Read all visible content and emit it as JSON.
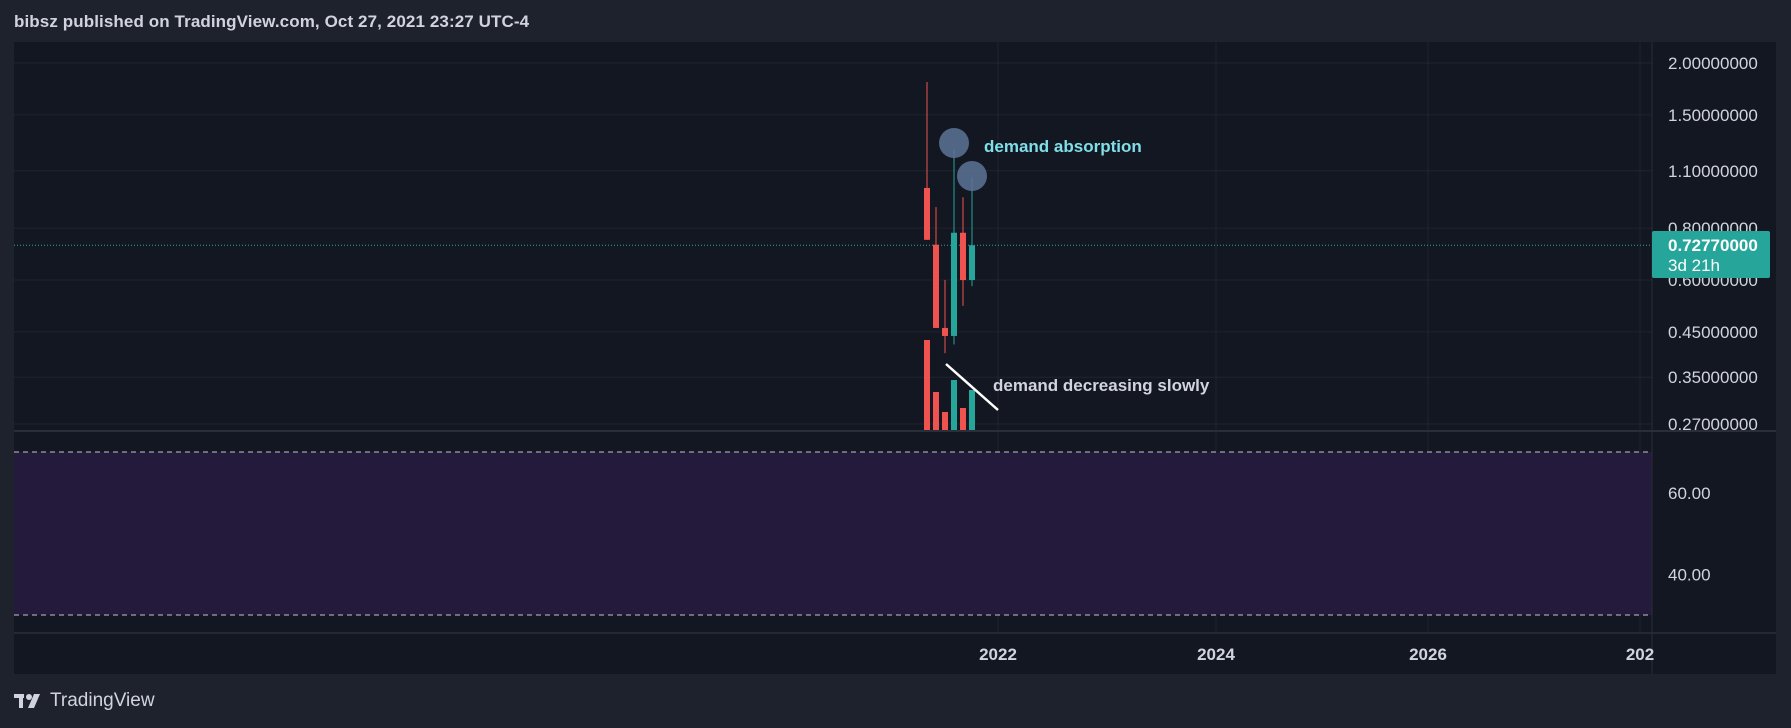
{
  "header": {
    "title": "bibsz published on TradingView.com, Oct 27, 2021 23:27 UTC-4"
  },
  "footer": {
    "brand": "TradingView",
    "logo_icon": "tradingview-logo-icon"
  },
  "colors": {
    "background": "#1e222d",
    "pane": "#131722",
    "grid": "#2a2e39",
    "up": "#26a69a",
    "down": "#ef5350",
    "rsi_band": "#231a3c",
    "annotation_cyan": "#7fdfe8",
    "annotation_gray": "#d1d4dc",
    "circle": "#5d7396",
    "price_tag": "#26a69a"
  },
  "chart_data": {
    "type": "candlestick",
    "interval": "1M",
    "price_scale": "log",
    "price_axis": {
      "tick_labels": [
        "2.00000000",
        "1.50000000",
        "1.10000000",
        "0.80000000",
        "0.60000000",
        "0.45000000",
        "0.35000000",
        "0.27000000"
      ],
      "ylim": [
        0.27,
        2.2
      ]
    },
    "current_price": {
      "value": 0.7277,
      "label": "0.72770000",
      "countdown": "3d 21h"
    },
    "candles": [
      {
        "date": "2021-05",
        "open": 1.0,
        "high": 1.8,
        "low": 0.75,
        "close": 0.75,
        "volume": 0.9
      },
      {
        "date": "2021-06",
        "open": 0.73,
        "high": 0.9,
        "low": 0.46,
        "close": 0.46,
        "volume": 0.38
      },
      {
        "date": "2021-07",
        "open": 0.46,
        "high": 0.6,
        "low": 0.4,
        "close": 0.44,
        "volume": 0.18
      },
      {
        "date": "2021-08",
        "open": 0.44,
        "high": 1.24,
        "low": 0.42,
        "close": 0.78,
        "volume": 0.5
      },
      {
        "date": "2021-09",
        "open": 0.78,
        "high": 0.95,
        "low": 0.52,
        "close": 0.6,
        "volume": 0.22
      },
      {
        "date": "2021-10",
        "open": 0.6,
        "high": 1.06,
        "low": 0.58,
        "close": 0.7277,
        "volume": 0.4
      }
    ],
    "annotations": [
      {
        "text": "demand absorption"
      },
      {
        "text": "demand decreasing slowly"
      }
    ],
    "rsi": {
      "tick_labels": [
        "60.00",
        "40.00"
      ],
      "upper_band": 70,
      "lower_band": 30,
      "ylim": [
        25,
        75
      ]
    },
    "x_axis": {
      "tick_labels": [
        "2022",
        "2024",
        "2026",
        "202"
      ]
    }
  }
}
